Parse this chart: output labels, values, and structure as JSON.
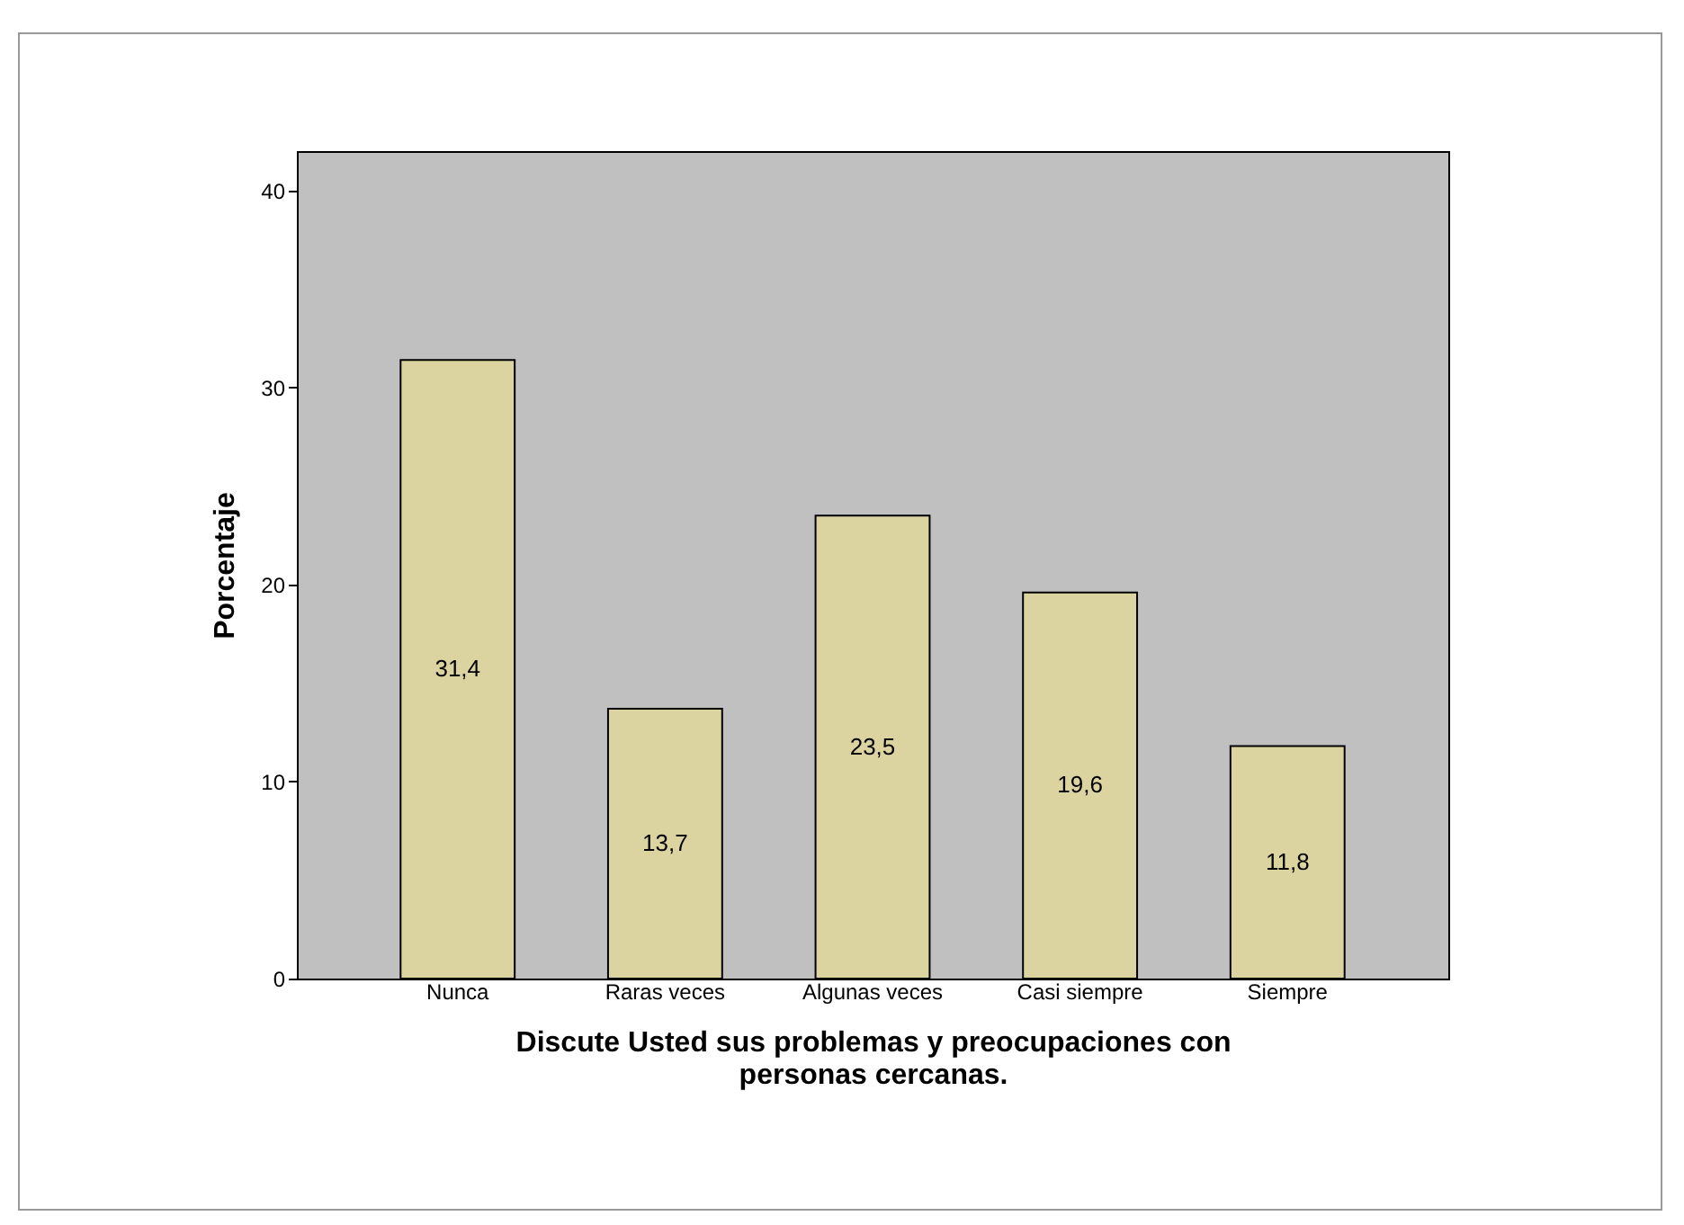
{
  "chart_data": {
    "type": "bar",
    "categories": [
      "Nunca",
      "Raras veces",
      "Algunas veces",
      "Casi siempre",
      "Siempre"
    ],
    "values": [
      31.4,
      13.7,
      23.5,
      19.6,
      11.8
    ],
    "color": "#dcd4a0",
    "value_labels": [
      "31,4",
      "13,7",
      "23,5",
      "19,6",
      "11,8"
    ],
    "xlabel": "Discute Usted sus problemas y preocupaciones con\npersonas cercanas.",
    "ylabel": "Porcentaje",
    "ylim": [
      0,
      42
    ],
    "yticks": [
      0,
      10,
      20,
      30,
      40
    ],
    "grid": false
  }
}
